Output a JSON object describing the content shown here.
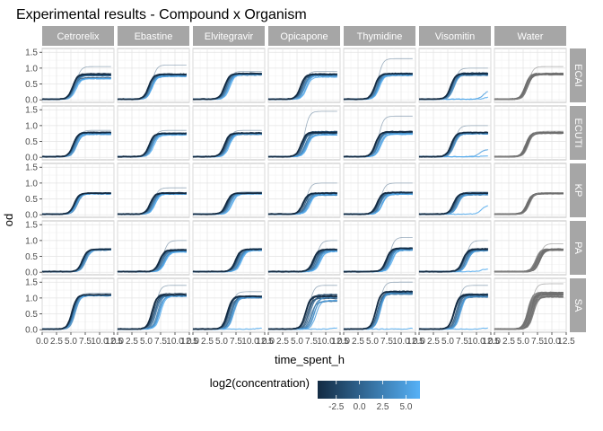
{
  "chart_data": {
    "type": "line",
    "title": "Experimental results - Compound x Organism",
    "xlabel": "time_spent_h",
    "ylabel": "od",
    "xlim": [
      0,
      12.5
    ],
    "ylim": [
      -0.08,
      1.62
    ],
    "x_ticks": [
      0.0,
      2.5,
      5.0,
      7.5,
      10.0,
      12.5
    ],
    "x_tick_labels": [
      "0.0",
      "2.5",
      "5.0",
      "7.5",
      "10.0",
      "12.5"
    ],
    "y_ticks": [
      0.0,
      0.5,
      1.0,
      1.5
    ],
    "y_tick_labels": [
      "0.0",
      "0.5",
      "1.0",
      "1.5"
    ],
    "grid": true,
    "columns": [
      "Cetrorelix",
      "Ebastine",
      "Elvitegravir",
      "Opicapone",
      "Thymidine",
      "Visomitin",
      "Water"
    ],
    "rows": [
      "ECAI",
      "ECUTI",
      "KP",
      "PA",
      "SA"
    ],
    "colorbar": {
      "title": "log2(concentration)",
      "ticks": [
        -2.5,
        0.0,
        2.5,
        5.0
      ],
      "tick_labels": [
        "-2.5",
        "0.0",
        "2.5",
        "5.0"
      ],
      "range": [
        -4.5,
        6.5
      ],
      "low_color": "#132b43",
      "high_color": "#56b1f7"
    },
    "water_color": "#6e6e6e",
    "legend_position": "bottom",
    "concentrations": [
      -4,
      -3,
      -2,
      -1,
      0,
      1,
      2,
      3,
      4,
      5,
      6
    ],
    "panels": {
      "ECAI": {
        "Cetrorelix": {
          "max": 0.8,
          "midpoint": 5.3,
          "spread_max": 0.3,
          "spread_mid": 0.5,
          "inhibited_max": [],
          "outlier_max": 1.05
        },
        "Ebastine": {
          "max": 0.8,
          "midpoint": 5.4,
          "spread_max": 0.12,
          "spread_mid": 0.7,
          "inhibited_max": [],
          "outlier_max": 1.1
        },
        "Elvitegravir": {
          "max": 0.82,
          "midpoint": 5.5,
          "spread_max": 0.1,
          "spread_mid": 0.8,
          "inhibited_max": [],
          "outlier_max": 0.9
        },
        "Opicapone": {
          "max": 0.8,
          "midpoint": 5.6,
          "spread_max": 0.12,
          "spread_mid": 1.0,
          "inhibited_max": [],
          "outlier_max": 0.9
        },
        "Thymidine": {
          "max": 0.82,
          "midpoint": 5.4,
          "spread_max": 0.1,
          "spread_mid": 0.8,
          "inhibited_max": [],
          "outlier_max": 1.3
        },
        "Visomitin": {
          "max": 0.82,
          "midpoint": 5.5,
          "spread_max": 0.1,
          "spread_mid": 0.6,
          "inhibited_max": [
            0.3,
            0.1
          ],
          "outlier_max": 1.0
        },
        "Water": {
          "max": 0.82,
          "midpoint": 5.3,
          "spread_max": 0.05,
          "spread_mid": 0.4,
          "inhibited_max": [],
          "outlier_max": 1.05
        }
      },
      "ECUTI": {
        "Cetrorelix": {
          "max": 0.78,
          "midpoint": 5.4,
          "spread_max": 0.1,
          "spread_mid": 0.6,
          "inhibited_max": [],
          "outlier_max": 0.85
        },
        "Ebastine": {
          "max": 0.75,
          "midpoint": 5.5,
          "spread_max": 0.08,
          "spread_mid": 0.7,
          "inhibited_max": [],
          "outlier_max": 0.85
        },
        "Elvitegravir": {
          "max": 0.76,
          "midpoint": 5.5,
          "spread_max": 0.08,
          "spread_mid": 0.8,
          "inhibited_max": [],
          "outlier_max": 0.85
        },
        "Opicapone": {
          "max": 0.78,
          "midpoint": 5.7,
          "spread_max": 0.15,
          "spread_mid": 1.2,
          "inhibited_max": [],
          "outlier_max": 1.45
        },
        "Thymidine": {
          "max": 0.8,
          "midpoint": 5.5,
          "spread_max": 0.12,
          "spread_mid": 0.9,
          "inhibited_max": [],
          "outlier_max": 1.3
        },
        "Visomitin": {
          "max": 0.78,
          "midpoint": 5.6,
          "spread_max": 0.1,
          "spread_mid": 0.7,
          "inhibited_max": [
            0.25,
            0.05
          ],
          "outlier_max": 1.0
        },
        "Water": {
          "max": 0.78,
          "midpoint": 5.4,
          "spread_max": 0.04,
          "spread_mid": 0.4,
          "inhibited_max": [],
          "outlier_max": 0.82
        }
      },
      "KP": {
        "Cetrorelix": {
          "max": 0.68,
          "midpoint": 5.6,
          "spread_max": 0.05,
          "spread_mid": 0.5,
          "inhibited_max": [],
          "outlier_max": 0.7
        },
        "Ebastine": {
          "max": 0.68,
          "midpoint": 5.7,
          "spread_max": 0.08,
          "spread_mid": 0.8,
          "inhibited_max": [],
          "outlier_max": 0.85
        },
        "Elvitegravir": {
          "max": 0.68,
          "midpoint": 5.8,
          "spread_max": 0.06,
          "spread_mid": 0.9,
          "inhibited_max": [],
          "outlier_max": 0.72
        },
        "Opicapone": {
          "max": 0.68,
          "midpoint": 6.0,
          "spread_max": 0.12,
          "spread_mid": 1.2,
          "inhibited_max": [],
          "outlier_max": 1.0
        },
        "Thymidine": {
          "max": 0.7,
          "midpoint": 5.8,
          "spread_max": 0.1,
          "spread_mid": 1.0,
          "inhibited_max": [],
          "outlier_max": 1.0
        },
        "Visomitin": {
          "max": 0.68,
          "midpoint": 6.0,
          "spread_max": 0.1,
          "spread_mid": 0.9,
          "inhibited_max": [
            0.3
          ],
          "outlier_max": 0.72
        },
        "Water": {
          "max": 0.68,
          "midpoint": 5.6,
          "spread_max": 0.03,
          "spread_mid": 0.4,
          "inhibited_max": [],
          "outlier_max": 0.7
        }
      },
      "PA": {
        "Cetrorelix": {
          "max": 0.72,
          "midpoint": 7.0,
          "spread_max": 0.05,
          "spread_mid": 0.6,
          "inhibited_max": [],
          "outlier_max": 0.75
        },
        "Ebastine": {
          "max": 0.7,
          "midpoint": 7.3,
          "spread_max": 0.1,
          "spread_mid": 1.0,
          "inhibited_max": [],
          "outlier_max": 1.0
        },
        "Elvitegravir": {
          "max": 0.72,
          "midpoint": 7.4,
          "spread_max": 0.06,
          "spread_mid": 1.0,
          "inhibited_max": [],
          "outlier_max": 0.75
        },
        "Opicapone": {
          "max": 0.72,
          "midpoint": 7.8,
          "spread_max": 0.12,
          "spread_mid": 1.2,
          "inhibited_max": [],
          "outlier_max": 1.0
        },
        "Thymidine": {
          "max": 0.75,
          "midpoint": 7.4,
          "spread_max": 0.12,
          "spread_mid": 1.0,
          "inhibited_max": [],
          "outlier_max": 1.1
        },
        "Visomitin": {
          "max": 0.72,
          "midpoint": 7.6,
          "spread_max": 0.1,
          "spread_mid": 1.0,
          "inhibited_max": [
            0.1
          ],
          "outlier_max": 1.0
        },
        "Water": {
          "max": 0.72,
          "midpoint": 7.2,
          "spread_max": 0.05,
          "spread_mid": 0.7,
          "inhibited_max": [],
          "outlier_max": 0.9
        }
      },
      "SA": {
        "Cetrorelix": {
          "max": 1.1,
          "midpoint": 5.2,
          "spread_max": 0.06,
          "spread_mid": 0.6,
          "inhibited_max": [],
          "outlier_max": 1.15
        },
        "Ebastine": {
          "max": 1.1,
          "midpoint": 6.0,
          "spread_max": 0.15,
          "spread_mid": 1.5,
          "inhibited_max": [],
          "outlier_max": 1.4
        },
        "Elvitegravir": {
          "max": 1.05,
          "midpoint": 6.0,
          "spread_max": 0.1,
          "spread_mid": 1.2,
          "inhibited_max": [
            0.05
          ],
          "outlier_max": 1.2
        },
        "Opicapone": {
          "max": 1.05,
          "midpoint": 6.5,
          "spread_max": 0.35,
          "spread_mid": 2.0,
          "inhibited_max": [
            0.05
          ],
          "outlier_max": 1.4
        },
        "Thymidine": {
          "max": 1.2,
          "midpoint": 5.6,
          "spread_max": 0.15,
          "spread_mid": 0.8,
          "inhibited_max": [
            0.05
          ],
          "outlier_max": 1.5
        },
        "Visomitin": {
          "max": 1.1,
          "midpoint": 6.1,
          "spread_max": 0.15,
          "spread_mid": 1.3,
          "inhibited_max": [
            0.05
          ],
          "outlier_max": 1.4
        },
        "Water": {
          "max": 1.15,
          "midpoint": 5.8,
          "spread_max": 0.2,
          "spread_mid": 0.9,
          "inhibited_max": [],
          "outlier_max": 1.45
        }
      }
    }
  }
}
